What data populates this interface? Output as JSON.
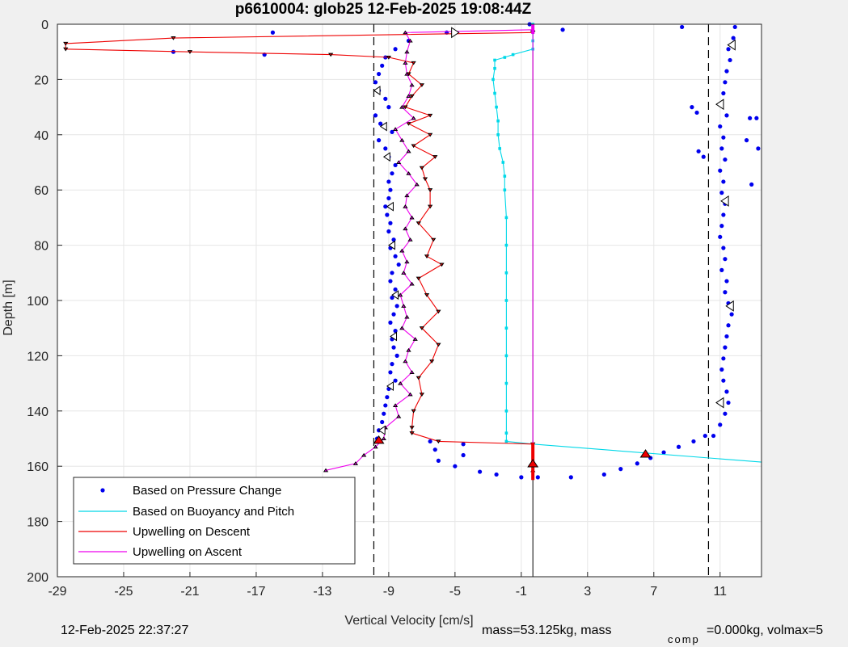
{
  "chart_data": {
    "type": "scatter",
    "title": "p6610004: glob25 12-Feb-2025 19:08:44Z",
    "xlabel": "Vertical Velocity [cm/s]",
    "ylabel": "Depth [m]",
    "xlim": [
      -29,
      13.5
    ],
    "ylim": [
      200,
      0
    ],
    "y_reversed": true,
    "grid": true,
    "legend_position": "bottom-left",
    "xticks": [
      -29,
      -25,
      -21,
      -17,
      -13,
      -9,
      -5,
      -1,
      3,
      7,
      11
    ],
    "yticks": [
      0,
      20,
      40,
      60,
      80,
      100,
      120,
      140,
      160,
      180,
      200
    ],
    "ref_lines": {
      "dashed": [
        -9.9,
        10.3
      ],
      "solid": [
        -0.3
      ]
    },
    "series": [
      {
        "name": "Based on Pressure Change",
        "style": "dots",
        "color": "#0000ee",
        "descent": {
          "depth": [
            0,
            3,
            6,
            9,
            12,
            15,
            18,
            21,
            24,
            27,
            30,
            33,
            36,
            39,
            42,
            45,
            48,
            51,
            54,
            57,
            60,
            63,
            66,
            69,
            72,
            75,
            78,
            81,
            84,
            87,
            90,
            93,
            96,
            99,
            102,
            105,
            108,
            111,
            114,
            117,
            120,
            123,
            126,
            129,
            132,
            135,
            138,
            141,
            144,
            147,
            150
          ],
          "velocity": [
            -0.5,
            -5.5,
            -7.8,
            -8.6,
            -9.2,
            -9.4,
            -9.6,
            -9.8,
            -9.6,
            -9.2,
            -9.0,
            -9.8,
            -9.5,
            -8.8,
            -9.6,
            -9.2,
            -9.0,
            -8.6,
            -8.8,
            -9.0,
            -8.9,
            -9.0,
            -9.2,
            -9.1,
            -8.9,
            -9.0,
            -8.7,
            -8.9,
            -8.6,
            -8.4,
            -8.8,
            -8.9,
            -8.6,
            -8.8,
            -8.5,
            -8.7,
            -8.9,
            -8.6,
            -8.8,
            -8.7,
            -8.5,
            -8.8,
            -8.9,
            -8.6,
            -9.0,
            -9.1,
            -9.2,
            -9.3,
            -9.4,
            -9.6,
            -9.7
          ]
        },
        "bottom_turn": {
          "depth": [
            151,
            152,
            154,
            156,
            158,
            160,
            162,
            163,
            164,
            164,
            164,
            163,
            161,
            159,
            157,
            155,
            153,
            151,
            149
          ],
          "velocity": [
            -6.5,
            -4.5,
            -6.2,
            -4.5,
            -6.0,
            -5.0,
            -3.5,
            -2.5,
            -1.0,
            0.0,
            2.0,
            4.0,
            5.0,
            6.0,
            6.8,
            7.6,
            8.5,
            9.4,
            10.1
          ]
        },
        "ascent": {
          "depth": [
            149,
            145,
            141,
            137,
            133,
            129,
            125,
            121,
            117,
            113,
            109,
            105,
            101,
            97,
            93,
            89,
            85,
            81,
            77,
            73,
            69,
            65,
            61,
            57,
            53,
            49,
            45,
            41,
            37,
            33,
            29,
            25,
            21,
            17,
            13,
            9,
            5,
            1
          ],
          "velocity": [
            10.6,
            11.0,
            11.3,
            11.5,
            11.4,
            11.2,
            11.1,
            11.2,
            11.3,
            11.4,
            11.5,
            11.7,
            11.5,
            11.3,
            11.4,
            11.1,
            11.3,
            11.2,
            11.0,
            11.1,
            11.2,
            11.3,
            11.1,
            11.2,
            11.0,
            11.3,
            11.1,
            11.2,
            11.0,
            11.4,
            11.1,
            11.2,
            11.3,
            11.4,
            11.6,
            11.5,
            11.8,
            11.9
          ]
        },
        "outliers": {
          "depth": [
            3,
            11,
            10,
            1,
            2,
            30,
            32,
            34,
            46,
            48,
            34,
            45,
            42,
            58
          ],
          "velocity": [
            -16.0,
            -16.5,
            -22.0,
            8.7,
            1.5,
            9.3,
            9.6,
            13.2,
            9.7,
            10.0,
            12.8,
            13.3,
            12.6,
            12.9
          ]
        }
      },
      {
        "name": "Based on Buoyancy and Pitch",
        "style": "line-square",
        "color": "#00d8e8",
        "depth": [
          0,
          3,
          6,
          9,
          11,
          12,
          13,
          16,
          20,
          25,
          30,
          35,
          40,
          45,
          50,
          55,
          60,
          70,
          80,
          90,
          100,
          110,
          120,
          130,
          140,
          148,
          151,
          152,
          158.5
        ],
        "velocity": [
          -0.3,
          -0.3,
          -0.3,
          -0.3,
          -1.5,
          -2.0,
          -2.6,
          -2.6,
          -2.7,
          -2.6,
          -2.5,
          -2.4,
          -2.4,
          -2.3,
          -2.1,
          -2.0,
          -2.0,
          -1.9,
          -1.9,
          -1.9,
          -1.9,
          -1.9,
          -1.9,
          -1.9,
          -1.9,
          -1.9,
          -1.9,
          -0.3,
          13.5
        ]
      },
      {
        "name": "Upwelling on Descent",
        "style": "line-triangle",
        "color": "#ee0000",
        "depth": [
          3,
          5,
          7,
          9,
          10,
          11,
          12,
          14,
          18,
          22,
          26,
          30,
          33,
          36,
          40,
          44,
          48,
          52,
          56,
          60,
          66,
          72,
          78,
          84,
          87,
          92,
          98,
          104,
          110,
          116,
          122,
          128,
          134,
          140,
          146,
          148,
          151,
          152
        ],
        "velocity": [
          -0.3,
          -22.0,
          -28.5,
          -28.5,
          -21.0,
          -12.5,
          -9.0,
          -7.5,
          -7.8,
          -7.0,
          -7.6,
          -8.0,
          -6.5,
          -7.8,
          -6.5,
          -7.5,
          -6.2,
          -7.0,
          -6.8,
          -6.5,
          -6.5,
          -7.2,
          -6.3,
          -6.7,
          -5.8,
          -7.2,
          -6.7,
          -6.0,
          -7.0,
          -6.0,
          -6.4,
          -7.2,
          -7.0,
          -7.5,
          -7.6,
          -7.6,
          -6.0,
          -0.3
        ]
      },
      {
        "name": "Upwelling on Ascent",
        "style": "line-triangle",
        "color": "#ee00ee",
        "depth": [
          161.5,
          159,
          156,
          153,
          150,
          146,
          142,
          138,
          134,
          130,
          126,
          122,
          118,
          114,
          110,
          106,
          102,
          98,
          94,
          90,
          86,
          82,
          78,
          74,
          70,
          66,
          62,
          58,
          54,
          50,
          46,
          42,
          38,
          34,
          30,
          26,
          22,
          18,
          14,
          10,
          6,
          3,
          2,
          161.5
        ],
        "velocity": [
          -12.8,
          -11.0,
          -10.5,
          -9.8,
          -9.3,
          -9.2,
          -8.4,
          -8.6,
          -7.7,
          -8.3,
          -7.6,
          -8.0,
          -7.8,
          -7.4,
          -8.2,
          -7.9,
          -8.1,
          -8.3,
          -7.6,
          -8.1,
          -7.9,
          -8.2,
          -7.7,
          -8.0,
          -7.6,
          -8.0,
          -7.9,
          -7.3,
          -7.8,
          -8.4,
          -7.8,
          -8.2,
          -8.6,
          -7.5,
          -8.2,
          -7.8,
          -7.6,
          -7.9,
          -8.0,
          -7.9,
          -7.7,
          -8.0,
          -0.3,
          -0.3
        ]
      }
    ],
    "markers": {
      "black_triangles_left": {
        "depth": [
          7.5,
          29,
          64,
          102,
          137
        ],
        "velocity": [
          11.7,
          11.0,
          11.3,
          11.6,
          11.0
        ]
      },
      "white_triangles_left": {
        "depth": [
          24,
          37,
          48,
          66,
          80,
          98,
          113,
          131,
          147
        ],
        "velocity": [
          -9.7,
          -9.3,
          -9.1,
          -8.9,
          -8.8,
          -8.6,
          -8.7,
          -8.9,
          -9.4
        ]
      },
      "white_triangles_right": {
        "depth": [
          3
        ],
        "velocity": [
          -5.0
        ]
      },
      "red_triangles": {
        "depth": [
          150.5,
          159,
          155.5
        ],
        "velocity": [
          -9.6,
          -0.3,
          6.5
        ]
      }
    }
  },
  "footer": {
    "timestamp": "12-Feb-2025 22:37:27",
    "mass_text": "mass=53.125kg, mass",
    "mass_sub": "comp",
    "mass_rest": "=0.000kg, volmax=5"
  }
}
